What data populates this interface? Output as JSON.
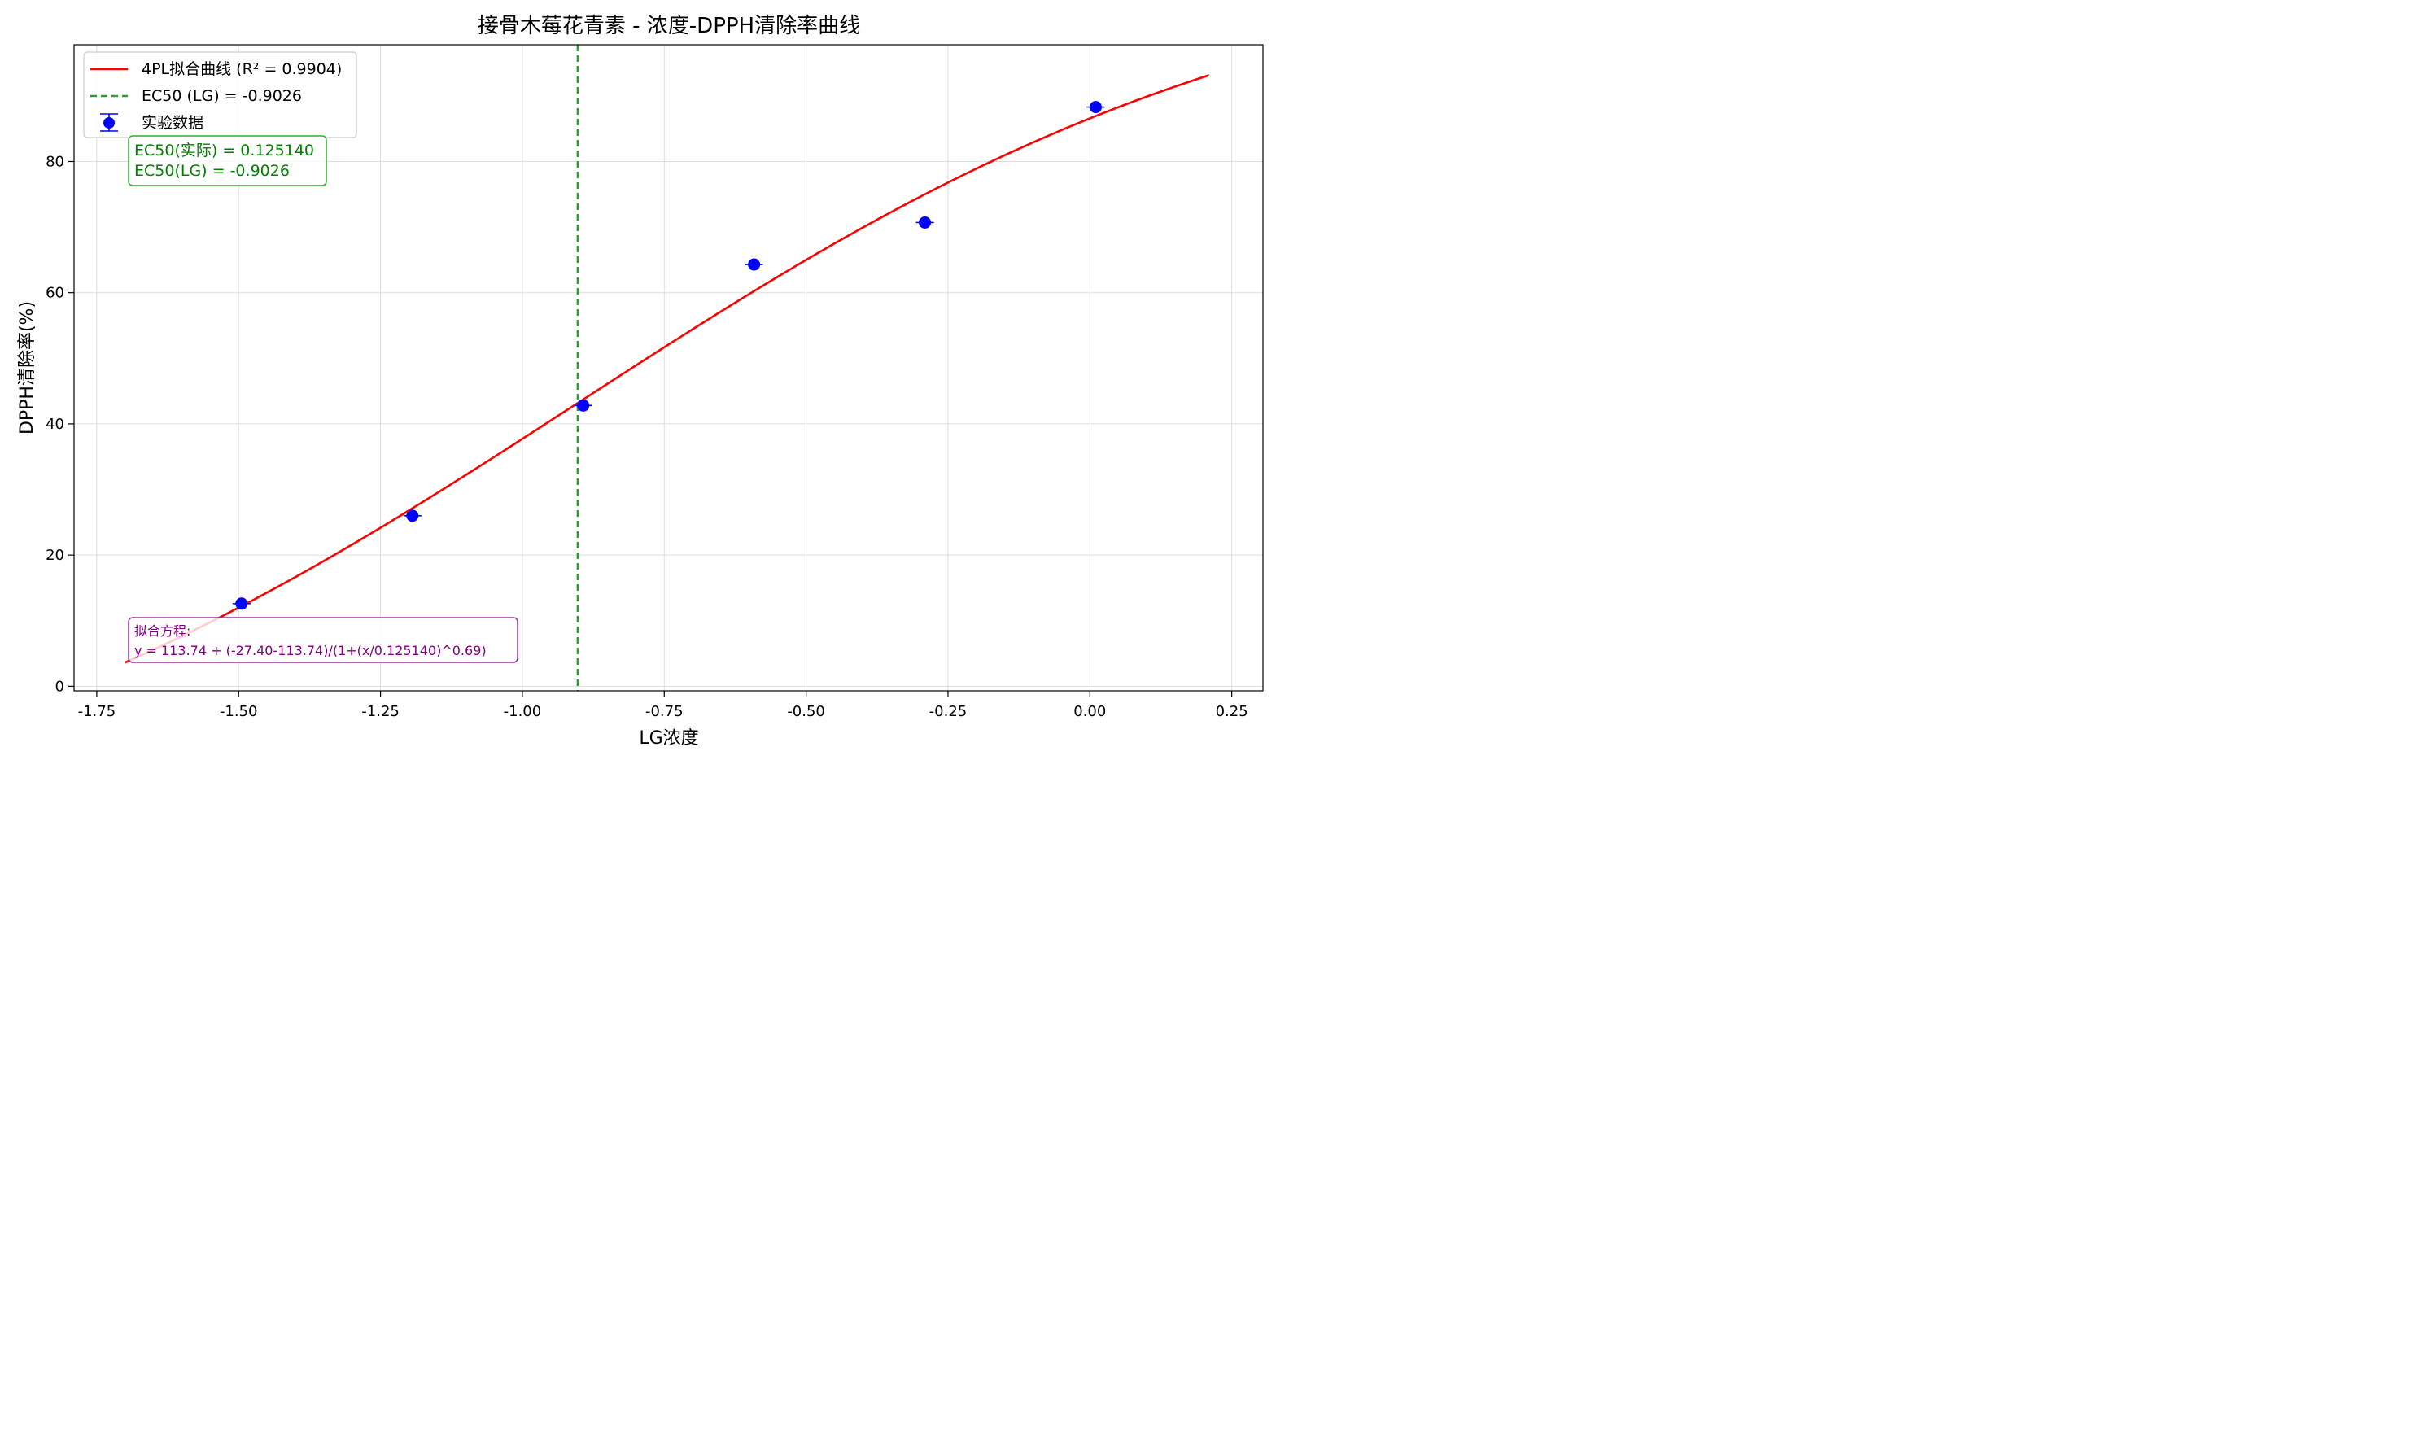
{
  "chart_data": {
    "type": "scatter",
    "title": "接骨木莓花青素 - 浓度-DPPH清除率曲线",
    "xlabel": "LG浓度",
    "ylabel": "DPPH清除率(%)",
    "xlim": [
      -1.79,
      0.305
    ],
    "ylim": [
      -0.7,
      97.8
    ],
    "xticks": [
      -1.75,
      -1.5,
      -1.25,
      -1.0,
      -0.75,
      -0.5,
      -0.25,
      0.0,
      0.25
    ],
    "xtick_labels": [
      "-1.75",
      "-1.50",
      "-1.25",
      "-1.00",
      "-0.75",
      "-0.50",
      "-0.25",
      "0.00",
      "0.25"
    ],
    "yticks": [
      0,
      20,
      40,
      60,
      80
    ],
    "ytick_labels": [
      "0",
      "20",
      "40",
      "60",
      "80"
    ],
    "grid": true,
    "legend_position": "top-left",
    "series": [
      {
        "name": "实验数据",
        "kind": "scatter-errorbar",
        "color": "#0000ff",
        "x": [
          -1.4949,
          -1.1938,
          -0.8928,
          -0.5918,
          -0.2907,
          0.0103
        ],
        "y": [
          12.6,
          26.0,
          42.8,
          64.3,
          70.7,
          88.3
        ]
      },
      {
        "name": "4PL拟合曲线 (R² = 0.9904)",
        "kind": "fit-line",
        "color": "#ff0000",
        "model": {
          "top": 113.74,
          "bottom": -27.4,
          "ec50": 0.12514,
          "hill": 0.69
        },
        "x_range": [
          -1.7,
          0.21
        ]
      },
      {
        "name": "EC50 (LG) = -0.9026",
        "kind": "vline",
        "color": "#339933",
        "x": -0.9026
      }
    ],
    "annotations": {
      "ec50_box": {
        "lines": [
          "EC50(实际) = 0.125140",
          "EC50(LG) = -0.9026"
        ],
        "color": "#008000"
      },
      "equation_box": {
        "lines": [
          "拟合方程:",
          "y = 113.74 + (-27.40-113.74)/(1+(x/0.125140)^0.69)"
        ],
        "color": "#800080"
      }
    }
  }
}
